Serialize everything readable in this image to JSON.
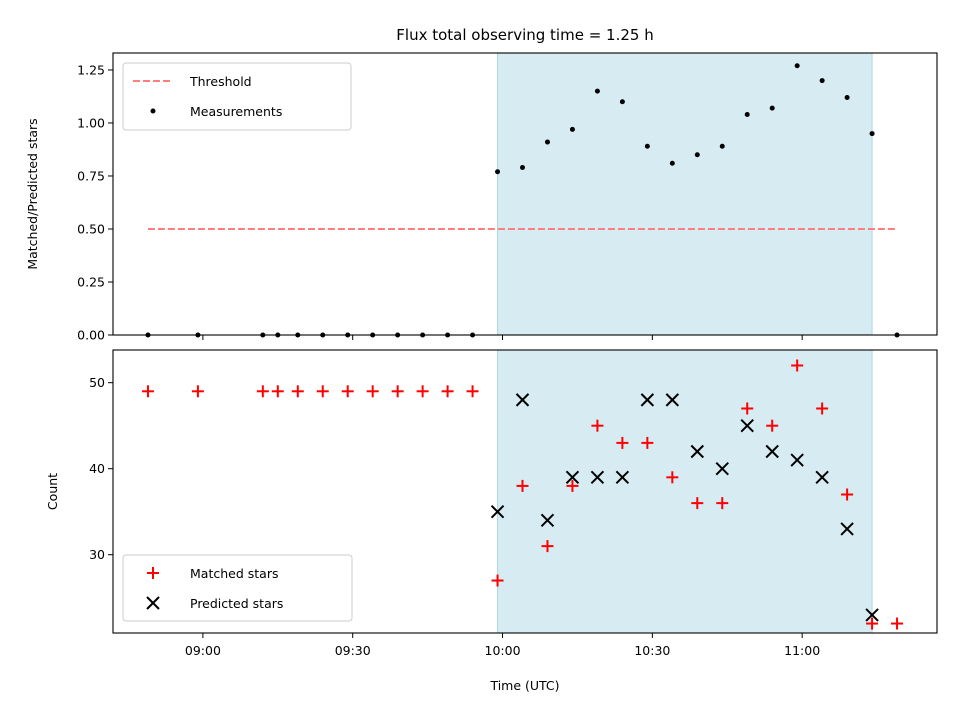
{
  "title": "Flux total observing time = 1.25 h",
  "colors": {
    "threshold": "#ff7f7f",
    "measurement": "#000000",
    "matched": "#ff0000",
    "predicted": "#000000",
    "shade": "#add8e6"
  },
  "chart_data": [
    {
      "type": "scatter",
      "title": "Flux total observing time = 1.25 h",
      "xlabel": "",
      "ylabel": "Matched/Predicted stars",
      "xlim": [
        "08:42",
        "11:27"
      ],
      "ylim": [
        0,
        1.33
      ],
      "yticks": [
        0.0,
        0.25,
        0.5,
        0.75,
        1.0,
        1.25
      ],
      "ytick_labels": [
        "0.00",
        "0.25",
        "0.50",
        "0.75",
        "1.00",
        "1.25"
      ],
      "shaded_span": [
        "09:59",
        "11:14"
      ],
      "legend": "upper-left",
      "legend_entries": [
        "Threshold",
        "Measurements"
      ],
      "series": [
        {
          "name": "Threshold",
          "kind": "dashed-line",
          "x": [
            "08:49",
            "11:19"
          ],
          "y": [
            0.5,
            0.5
          ]
        },
        {
          "name": "Measurements",
          "kind": "points",
          "x": [
            "08:49",
            "08:59",
            "09:12",
            "09:15",
            "09:19",
            "09:24",
            "09:29",
            "09:34",
            "09:39",
            "09:44",
            "09:49",
            "09:54",
            "09:59",
            "10:04",
            "10:09",
            "10:14",
            "10:19",
            "10:24",
            "10:29",
            "10:34",
            "10:39",
            "10:44",
            "10:49",
            "10:54",
            "10:59",
            "11:04",
            "11:09",
            "11:14",
            "11:19"
          ],
          "y": [
            0,
            0,
            0,
            0,
            0,
            0,
            0,
            0,
            0,
            0,
            0,
            0,
            0.77,
            0.79,
            0.91,
            0.97,
            1.15,
            1.1,
            0.89,
            0.81,
            0.85,
            0.89,
            1.04,
            1.07,
            1.27,
            1.2,
            1.12,
            0.95,
            0
          ]
        }
      ]
    },
    {
      "type": "scatter",
      "xlabel": "Time (UTC)",
      "ylabel": "Count",
      "xlim": [
        "08:42",
        "11:27"
      ],
      "ylim": [
        20.9,
        53.8
      ],
      "xticks": [
        "09:00",
        "09:30",
        "10:00",
        "10:30",
        "11:00"
      ],
      "yticks": [
        30,
        40,
        50
      ],
      "ytick_labels": [
        "30",
        "40",
        "50"
      ],
      "shaded_span": [
        "09:59",
        "11:14"
      ],
      "legend": "lower-left",
      "legend_entries": [
        "Matched stars",
        "Predicted stars"
      ],
      "series": [
        {
          "name": "Matched stars",
          "marker": "plus",
          "x": [
            "08:49",
            "08:59",
            "09:12",
            "09:15",
            "09:19",
            "09:24",
            "09:29",
            "09:34",
            "09:39",
            "09:44",
            "09:49",
            "09:54",
            "09:59",
            "10:04",
            "10:09",
            "10:14",
            "10:19",
            "10:24",
            "10:29",
            "10:34",
            "10:39",
            "10:44",
            "10:49",
            "10:54",
            "10:59",
            "11:04",
            "11:09",
            "11:14",
            "11:19"
          ],
          "y": [
            49,
            49,
            49,
            49,
            49,
            49,
            49,
            49,
            49,
            49,
            49,
            49,
            27,
            38,
            31,
            38,
            45,
            43,
            43,
            39,
            36,
            36,
            47,
            45,
            52,
            47,
            37,
            22,
            22
          ]
        },
        {
          "name": "Predicted stars",
          "marker": "x",
          "x": [
            "09:59",
            "10:04",
            "10:09",
            "10:14",
            "10:19",
            "10:24",
            "10:29",
            "10:34",
            "10:39",
            "10:44",
            "10:49",
            "10:54",
            "10:59",
            "11:04",
            "11:09",
            "11:14"
          ],
          "y": [
            35,
            48,
            34,
            39,
            39,
            39,
            48,
            48,
            42,
            40,
            45,
            42,
            41,
            39,
            33,
            23
          ]
        }
      ]
    }
  ]
}
